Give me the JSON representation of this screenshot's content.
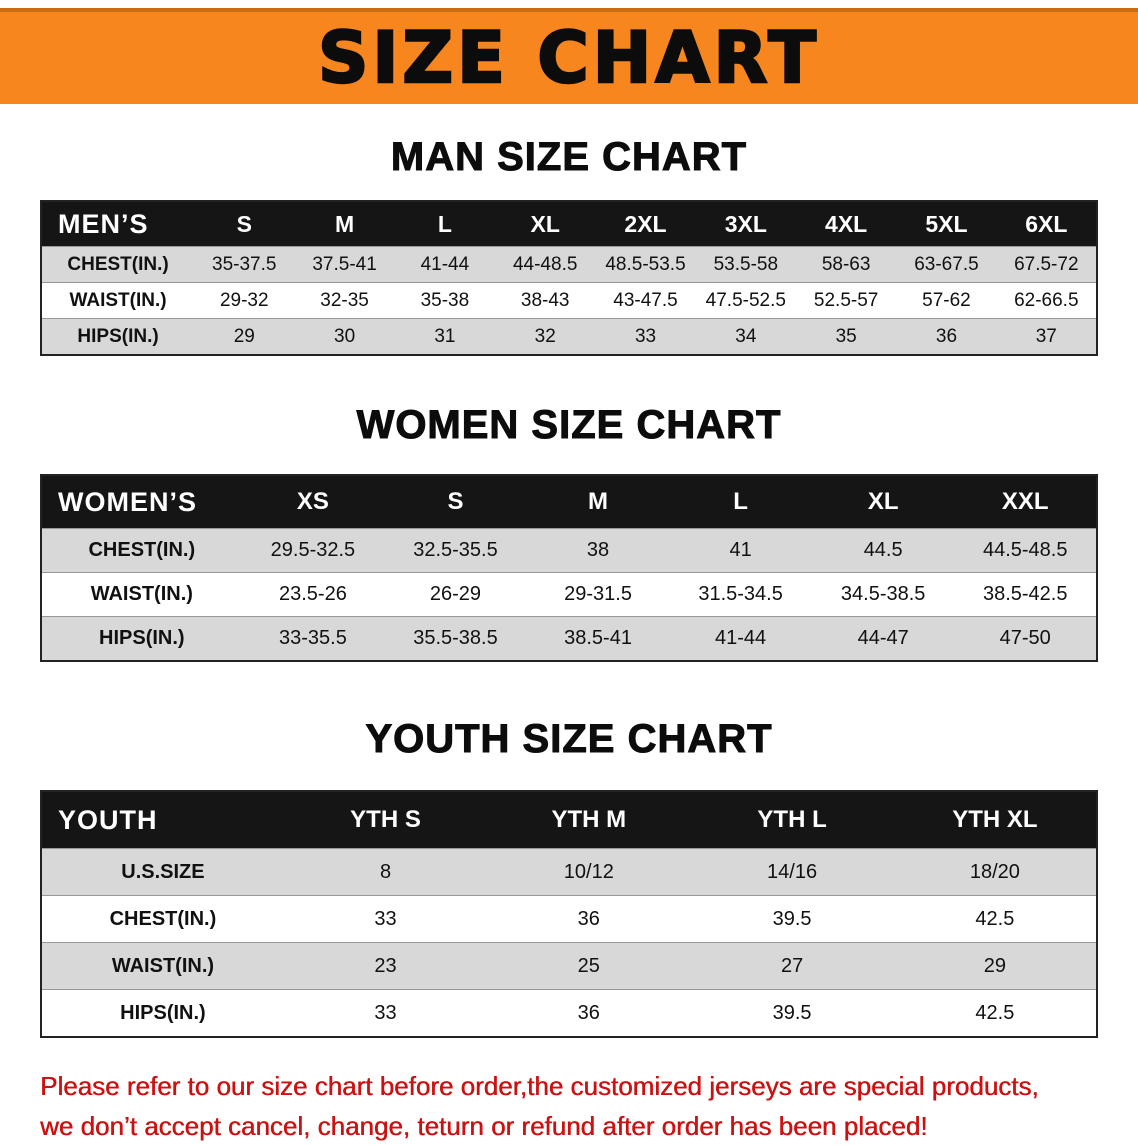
{
  "banner": {
    "title": "SIZE CHART"
  },
  "colors": {
    "banner_bg": "#f6861d",
    "table_header_bg": "#151515",
    "stripe_row": "#d8d8d8",
    "disclaimer_text": "#cc1111"
  },
  "sections": {
    "men": {
      "heading": "MAN SIZE CHART",
      "table": {
        "header": [
          "MEN’S",
          "S",
          "M",
          "L",
          "XL",
          "2XL",
          "3XL",
          "4XL",
          "5XL",
          "6XL"
        ],
        "rows": [
          {
            "label": "CHEST(IN.)",
            "cells": [
              "35-37.5",
              "37.5-41",
              "41-44",
              "44-48.5",
              "48.5-53.5",
              "53.5-58",
              "58-63",
              "63-67.5",
              "67.5-72"
            ]
          },
          {
            "label": "WAIST(IN.)",
            "cells": [
              "29-32",
              "32-35",
              "35-38",
              "38-43",
              "43-47.5",
              "47.5-52.5",
              "52.5-57",
              "57-62",
              "62-66.5"
            ]
          },
          {
            "label": "HIPS(IN.)",
            "cells": [
              "29",
              "30",
              "31",
              "32",
              "33",
              "34",
              "35",
              "36",
              "37"
            ]
          }
        ]
      }
    },
    "women": {
      "heading": "WOMEN SIZE CHART",
      "table": {
        "header": [
          "WOMEN’S",
          "XS",
          "S",
          "M",
          "L",
          "XL",
          "XXL"
        ],
        "rows": [
          {
            "label": "CHEST(IN.)",
            "cells": [
              "29.5-32.5",
              "32.5-35.5",
              "38",
              "41",
              "44.5",
              "44.5-48.5"
            ]
          },
          {
            "label": "WAIST(IN.)",
            "cells": [
              "23.5-26",
              "26-29",
              "29-31.5",
              "31.5-34.5",
              "34.5-38.5",
              "38.5-42.5"
            ]
          },
          {
            "label": "HIPS(IN.)",
            "cells": [
              "33-35.5",
              "35.5-38.5",
              "38.5-41",
              "41-44",
              "44-47",
              "47-50"
            ]
          }
        ]
      }
    },
    "youth": {
      "heading": "YOUTH SIZE CHART",
      "table": {
        "header": [
          "YOUTH",
          "YTH S",
          "YTH M",
          "YTH L",
          "YTH XL"
        ],
        "rows": [
          {
            "label": "U.S.SIZE",
            "cells": [
              "8",
              "10/12",
              "14/16",
              "18/20"
            ]
          },
          {
            "label": "CHEST(IN.)",
            "cells": [
              "33",
              "36",
              "39.5",
              "42.5"
            ]
          },
          {
            "label": "WAIST(IN.)",
            "cells": [
              "23",
              "25",
              "27",
              "29"
            ]
          },
          {
            "label": "HIPS(IN.)",
            "cells": [
              "33",
              "36",
              "39.5",
              "42.5"
            ]
          }
        ]
      }
    }
  },
  "disclaimer": {
    "line1": "Please refer to our size chart before order,the customized jerseys are special products,",
    "line2": "we don’t accept cancel, change, teturn or refund after order has been placed!"
  }
}
